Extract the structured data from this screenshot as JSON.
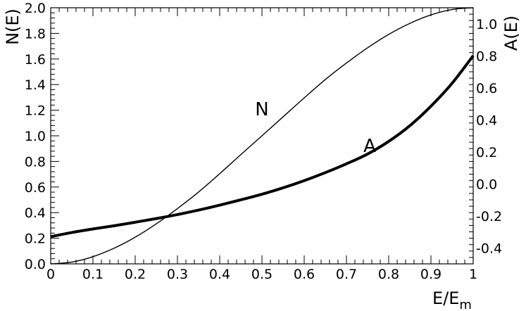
{
  "chart_data": {
    "type": "line",
    "title": "",
    "xlabel": "E/E",
    "xlabel_sub": "m",
    "ylabel_left": "N(E)",
    "ylabel_right": "A(E)",
    "xlim": [
      0,
      1
    ],
    "ylim_left": [
      0,
      2
    ],
    "ylim_right": [
      -0.5,
      1.1
    ],
    "grid": false,
    "x_ticks": [
      "0",
      "0.1",
      "0.2",
      "0.3",
      "0.4",
      "0.5",
      "0.6",
      "0.7",
      "0.8",
      "0.9",
      "1"
    ],
    "y_left_ticks": [
      "0.0",
      "0.2",
      "0.4",
      "0.6",
      "0.8",
      "1.0",
      "1.2",
      "1.4",
      "1.6",
      "1.8",
      "2.0"
    ],
    "y_right_ticks": [
      "-0.4",
      "-0.2",
      "0.0",
      "0.2",
      "0.4",
      "0.6",
      "0.8",
      "1.0"
    ],
    "series": [
      {
        "name": "N",
        "axis": "left",
        "line_weight": "thin",
        "x": [
          0,
          0.05,
          0.1,
          0.15,
          0.2,
          0.25,
          0.3,
          0.35,
          0.4,
          0.45,
          0.5,
          0.55,
          0.6,
          0.65,
          0.7,
          0.75,
          0.8,
          0.85,
          0.9,
          0.95,
          1
        ],
        "y": [
          0,
          0.014,
          0.056,
          0.122,
          0.208,
          0.313,
          0.432,
          0.561,
          0.704,
          0.853,
          1.0,
          1.148,
          1.296,
          1.439,
          1.568,
          1.687,
          1.792,
          1.878,
          1.944,
          1.986,
          2.0
        ]
      },
      {
        "name": "A",
        "axis": "right",
        "line_weight": "thick",
        "x": [
          0,
          0.05,
          0.1,
          0.15,
          0.2,
          0.25,
          0.3,
          0.35,
          0.4,
          0.45,
          0.5,
          0.55,
          0.6,
          0.65,
          0.7,
          0.75,
          0.8,
          0.85,
          0.9,
          0.95,
          1
        ],
        "y": [
          -0.33,
          -0.304,
          -0.282,
          -0.262,
          -0.24,
          -0.217,
          -0.192,
          -0.164,
          -0.133,
          -0.1,
          -0.065,
          -0.025,
          0.02,
          0.07,
          0.125,
          0.186,
          0.265,
          0.363,
          0.485,
          0.628,
          0.8
        ]
      }
    ],
    "annotations": [
      {
        "text": "N",
        "series": "N",
        "x": 0.5,
        "y": 1.16,
        "axis": "left"
      },
      {
        "text": "A",
        "series": "A",
        "x": 0.755,
        "y": 0.2,
        "axis": "right"
      }
    ]
  }
}
